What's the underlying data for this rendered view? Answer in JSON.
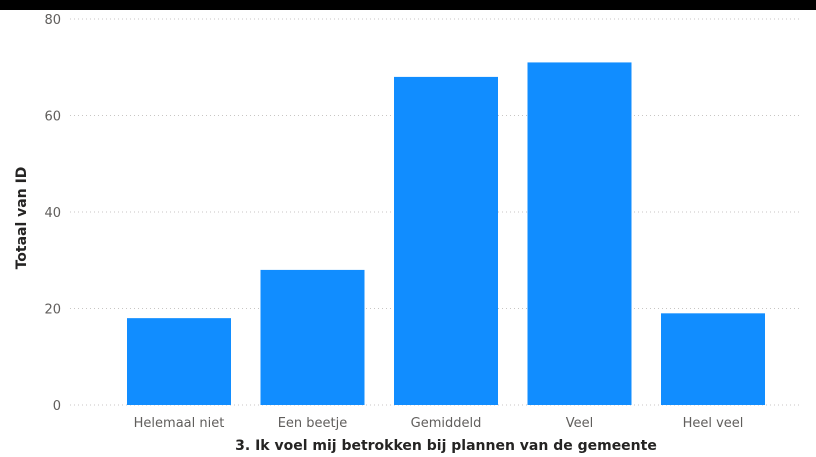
{
  "chart_data": {
    "type": "bar",
    "categories": [
      "Helemaal niet",
      "Een beetje",
      "Gemiddeld",
      "Veel",
      "Heel veel"
    ],
    "values": [
      18,
      28,
      68,
      71,
      19
    ],
    "xlabel": "3. Ik voel mij betrokken bij plannen van de gemeente",
    "ylabel": "Totaal van ID",
    "ylim": [
      0,
      80
    ],
    "yticks": [
      0,
      20,
      40,
      60,
      80
    ],
    "grid": true,
    "bar_color": "#118DFF"
  }
}
